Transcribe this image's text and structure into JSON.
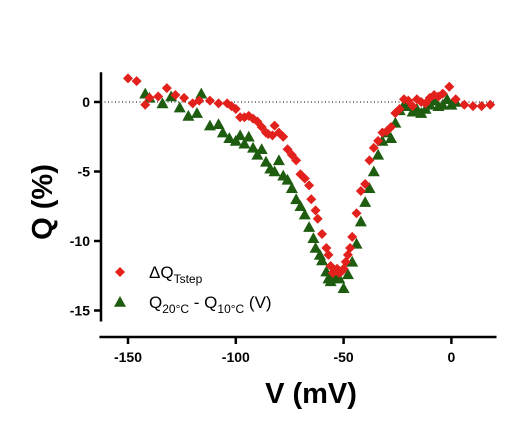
{
  "chart_data": {
    "type": "scatter",
    "title": "",
    "xlabel": "V (mV)",
    "ylabel": "Q (%)",
    "xlim": [
      -160,
      20
    ],
    "ylim": [
      -15.5,
      2
    ],
    "xticks": [
      -150,
      -100,
      -50,
      0
    ],
    "xtick_labels": [
      "-150",
      "-100",
      "-50",
      "0"
    ],
    "yticks": [
      0,
      -5,
      -10,
      -15
    ],
    "ytick_labels": [
      "0",
      "-5",
      "-10",
      "-15"
    ],
    "grid": false,
    "reference_line": {
      "y": 0,
      "style": "dotted"
    },
    "legend_position": "bottom-left",
    "series": [
      {
        "name": "ΔQ_Tstep",
        "legend_main": "ΔQ",
        "legend_sub": "Tstep",
        "legend_suffix": "",
        "marker": "diamond",
        "color": "#e3211c",
        "points": [
          [
            -150,
            1.7
          ],
          [
            -146,
            1.5
          ],
          [
            -142,
            -0.2
          ],
          [
            -140,
            0.3
          ],
          [
            -136,
            0.4
          ],
          [
            -132,
            1.0
          ],
          [
            -128,
            0.5
          ],
          [
            -124,
            0.3
          ],
          [
            -120,
            -0.1
          ],
          [
            -117,
            0.1
          ],
          [
            -112,
            0.1
          ],
          [
            -108,
            -0.1
          ],
          [
            -104,
            -0.1
          ],
          [
            -102,
            -0.3
          ],
          [
            -100,
            -0.5
          ],
          [
            -98,
            -1.1
          ],
          [
            -96,
            -1.1
          ],
          [
            -94,
            -1.0
          ],
          [
            -92,
            -1.2
          ],
          [
            -90,
            -1.4
          ],
          [
            -88,
            -1.8
          ],
          [
            -86,
            -2.2
          ],
          [
            -85,
            -2.3
          ],
          [
            -83,
            -2.4
          ],
          [
            -82,
            -1.7
          ],
          [
            -80,
            -2.2
          ],
          [
            -78,
            -2.5
          ],
          [
            -76,
            -3.4
          ],
          [
            -74,
            -3.8
          ],
          [
            -72,
            -4.2
          ],
          [
            -70,
            -5.2
          ],
          [
            -68,
            -5.5
          ],
          [
            -66,
            -6.0
          ],
          [
            -65,
            -7.0
          ],
          [
            -63,
            -7.8
          ],
          [
            -62,
            -8.4
          ],
          [
            -60,
            -9.5
          ],
          [
            -58,
            -10.5
          ],
          [
            -57,
            -11.0
          ],
          [
            -56,
            -11.8
          ],
          [
            -55,
            -12.3
          ],
          [
            -54,
            -12.1
          ],
          [
            -53,
            -12.0
          ],
          [
            -52,
            -12.3
          ],
          [
            -51,
            -12.2
          ],
          [
            -50,
            -12.0
          ],
          [
            -49,
            -11.5
          ],
          [
            -48,
            -11.0
          ],
          [
            -47,
            -10.5
          ],
          [
            -46,
            -9.7
          ],
          [
            -44,
            -8.0
          ],
          [
            -42,
            -6.4
          ],
          [
            -40,
            -5.9
          ],
          [
            -38,
            -4.2
          ],
          [
            -36,
            -3.3
          ],
          [
            -34,
            -2.8
          ],
          [
            -32,
            -2.2
          ],
          [
            -30,
            -2.1
          ],
          [
            -28,
            -1.8
          ],
          [
            -26,
            -0.8
          ],
          [
            -24,
            -0.5
          ],
          [
            -22,
            0.2
          ],
          [
            -20,
            0.1
          ],
          [
            -18,
            -0.3
          ],
          [
            -16,
            0.2
          ],
          [
            -14,
            0.0
          ],
          [
            -12,
            -0.1
          ],
          [
            -10,
            0.3
          ],
          [
            -8,
            0.5
          ],
          [
            -6,
            0.4
          ],
          [
            -4,
            0.6
          ],
          [
            -1,
            1.1
          ],
          [
            2,
            0.2
          ],
          [
            6,
            -0.2
          ],
          [
            10,
            -0.3
          ],
          [
            14,
            -0.3
          ],
          [
            18,
            -0.2
          ]
        ]
      },
      {
        "name": "Q20°C - Q10°C (V)",
        "legend_main": "Q",
        "legend_sub": "20°C",
        "legend_main2": " - Q",
        "legend_sub2": "10°C",
        "legend_suffix": " (V)",
        "marker": "triangle",
        "color": "#1e5c10",
        "points": [
          [
            -142,
            0.6
          ],
          [
            -140,
            0.3
          ],
          [
            -134,
            -0.1
          ],
          [
            -130,
            0.4
          ],
          [
            -126,
            -0.4
          ],
          [
            -122,
            -1.0
          ],
          [
            -118,
            -0.8
          ],
          [
            -116,
            0.6
          ],
          [
            -112,
            -1.7
          ],
          [
            -108,
            -1.6
          ],
          [
            -106,
            -2.2
          ],
          [
            -103,
            -2.6
          ],
          [
            -100,
            -2.8
          ],
          [
            -98,
            -2.4
          ],
          [
            -96,
            -3.0
          ],
          [
            -94,
            -2.5
          ],
          [
            -92,
            -3.3
          ],
          [
            -90,
            -3.8
          ],
          [
            -88,
            -3.4
          ],
          [
            -86,
            -4.3
          ],
          [
            -84,
            -4.8
          ],
          [
            -82,
            -5.0
          ],
          [
            -80,
            -4.2
          ],
          [
            -78,
            -5.3
          ],
          [
            -76,
            -5.6
          ],
          [
            -74,
            -6.2
          ],
          [
            -72,
            -7.0
          ],
          [
            -70,
            -7.5
          ],
          [
            -68,
            -8.1
          ],
          [
            -66,
            -9.0
          ],
          [
            -64,
            -9.8
          ],
          [
            -63,
            -10.5
          ],
          [
            -61,
            -11.0
          ],
          [
            -60,
            -11.4
          ],
          [
            -58,
            -12.2
          ],
          [
            -57,
            -12.7
          ],
          [
            -56,
            -12.9
          ],
          [
            -55,
            -12.6
          ],
          [
            -54,
            -12.4
          ],
          [
            -52,
            -12.7
          ],
          [
            -50,
            -13.4
          ],
          [
            -48,
            -12.4
          ],
          [
            -46,
            -11.5
          ],
          [
            -44,
            -10.2
          ],
          [
            -42,
            -8.6
          ],
          [
            -40,
            -7.2
          ],
          [
            -38,
            -6.2
          ],
          [
            -36,
            -5.0
          ],
          [
            -34,
            -3.8
          ],
          [
            -32,
            -2.8
          ],
          [
            -30,
            -2.2
          ],
          [
            -28,
            -2.6
          ],
          [
            -26,
            -1.5
          ],
          [
            -24,
            -0.6
          ],
          [
            -22,
            -0.2
          ],
          [
            -20,
            -0.3
          ],
          [
            -18,
            -0.7
          ],
          [
            -16,
            -0.5
          ],
          [
            -14,
            -0.8
          ],
          [
            -12,
            -0.5
          ],
          [
            -10,
            -0.2
          ],
          [
            -8,
            0.1
          ],
          [
            -6,
            -0.3
          ],
          [
            -4,
            -0.2
          ],
          [
            -2,
            0.2
          ],
          [
            0,
            -0.2
          ],
          [
            2,
            0.0
          ]
        ]
      }
    ]
  }
}
